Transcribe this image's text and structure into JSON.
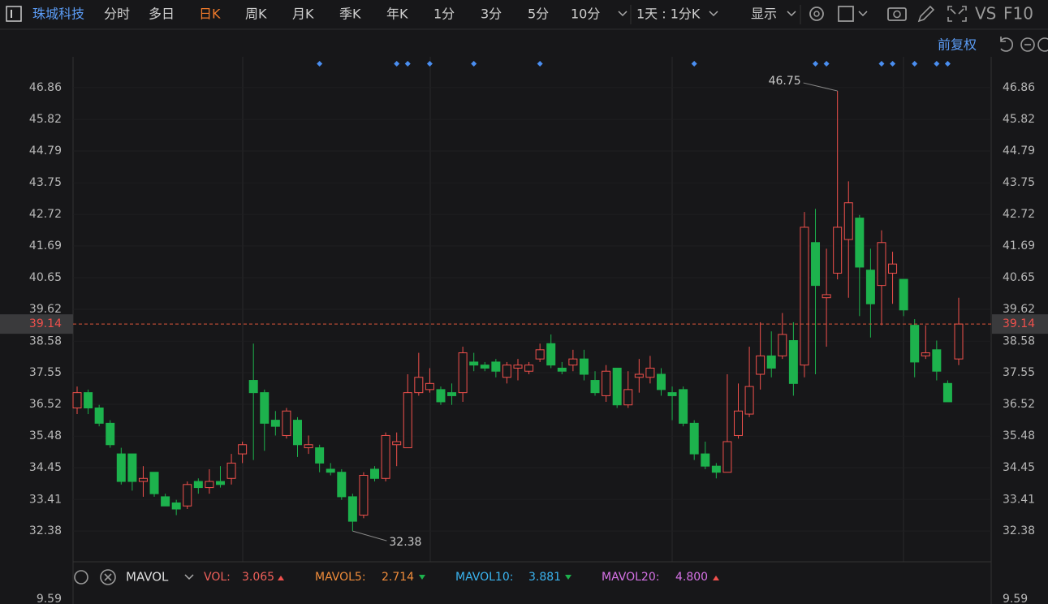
{
  "toolbar": {
    "stock_name": "珠城科技",
    "tabs": [
      "分时",
      "多日",
      "日K",
      "周K",
      "月K",
      "季K",
      "年K",
      "1分",
      "3分",
      "5分",
      "10分"
    ],
    "active_tab": "日K",
    "period_select": "1天 : 1分K",
    "display": "显示",
    "vs": "VS",
    "f10": "F10",
    "adjust": "前复权"
  },
  "chart_data": {
    "type": "candlestick",
    "up_color": "#f0504c",
    "down_color": "#1db24d",
    "open": [
      36.4,
      36.9,
      36.4,
      35.9,
      34.9,
      34.9,
      34.0,
      34.3,
      33.5,
      33.3,
      33.2,
      34.0,
      33.8,
      34.0,
      34.1,
      34.9,
      37.3,
      36.9,
      36.0,
      35.5,
      36.0,
      35.1,
      35.1,
      34.4,
      34.3,
      33.5,
      32.9,
      34.4,
      34.1,
      35.2,
      35.1,
      36.9,
      37.0,
      37.0,
      36.9,
      36.9,
      37.9,
      37.8,
      37.9,
      37.4,
      37.7,
      37.6,
      38.0,
      38.5,
      37.7,
      37.8,
      38.0,
      37.3,
      36.8,
      37.7,
      36.5,
      37.4,
      37.4,
      37.5,
      36.9,
      37.0,
      35.9,
      34.9,
      34.5,
      34.3,
      35.5,
      36.2,
      37.5,
      38.1,
      38.1,
      38.6,
      37.8,
      41.8,
      40.0,
      40.8,
      41.9,
      42.6,
      40.9,
      40.4,
      40.8,
      40.6,
      39.1,
      38.1,
      38.3,
      37.2,
      38.0
    ],
    "high": [
      37.1,
      37.0,
      36.5,
      36.0,
      35.1,
      34.9,
      34.5,
      34.3,
      33.6,
      33.4,
      34.0,
      34.1,
      34.4,
      34.5,
      34.9,
      35.3,
      38.5,
      37.0,
      36.3,
      36.4,
      36.1,
      35.5,
      35.2,
      34.6,
      34.4,
      33.6,
      34.3,
      34.5,
      35.6,
      35.6,
      37.5,
      38.2,
      37.7,
      37.1,
      37.2,
      38.4,
      38.2,
      37.9,
      38.0,
      37.9,
      38.0,
      37.9,
      38.5,
      38.8,
      37.9,
      38.3,
      38.3,
      37.6,
      37.8,
      37.7,
      37.6,
      38.0,
      38.1,
      37.7,
      37.1,
      37.1,
      36.0,
      35.3,
      34.6,
      37.5,
      37.2,
      38.4,
      39.2,
      38.9,
      39.5,
      39.2,
      42.8,
      42.9,
      41.6,
      46.75,
      43.8,
      42.7,
      41.6,
      42.2,
      41.5,
      40.6,
      39.3,
      39.1,
      38.6,
      37.3,
      40.0
    ],
    "low": [
      36.2,
      36.2,
      35.8,
      35.1,
      33.9,
      33.7,
      33.5,
      33.5,
      33.2,
      32.9,
      33.1,
      33.6,
      33.6,
      33.8,
      33.9,
      34.6,
      34.7,
      35.0,
      35.5,
      35.4,
      34.8,
      34.9,
      34.3,
      34.2,
      33.4,
      32.38,
      32.8,
      34.0,
      34.0,
      34.5,
      35.1,
      36.8,
      36.9,
      36.5,
      36.5,
      36.6,
      37.6,
      37.6,
      37.4,
      37.2,
      37.3,
      37.5,
      37.9,
      37.7,
      37.5,
      37.6,
      37.3,
      36.8,
      36.6,
      36.4,
      36.4,
      36.9,
      37.2,
      36.8,
      36.0,
      35.8,
      34.7,
      34.4,
      34.1,
      34.3,
      35.4,
      36.1,
      37.0,
      37.4,
      38.0,
      36.8,
      37.4,
      37.5,
      38.4,
      40.6,
      40.0,
      39.4,
      38.7,
      39.1,
      39.8,
      39.4,
      37.4,
      38.0,
      37.3,
      36.6,
      37.8
    ],
    "close": [
      36.9,
      36.4,
      35.9,
      35.2,
      34.0,
      34.0,
      34.1,
      33.6,
      33.2,
      33.1,
      33.9,
      33.8,
      34.0,
      33.9,
      34.6,
      35.2,
      36.9,
      35.9,
      35.8,
      36.3,
      35.2,
      35.2,
      34.6,
      34.3,
      33.5,
      32.7,
      34.2,
      34.1,
      35.5,
      35.3,
      36.9,
      37.4,
      37.2,
      36.6,
      36.8,
      38.2,
      37.8,
      37.7,
      37.6,
      37.8,
      37.8,
      37.8,
      38.3,
      37.8,
      37.6,
      38.0,
      37.5,
      36.9,
      37.6,
      36.5,
      37.0,
      37.5,
      37.7,
      37.0,
      36.8,
      35.9,
      34.9,
      34.5,
      34.3,
      35.3,
      36.3,
      37.1,
      38.1,
      37.7,
      38.8,
      37.2,
      42.3,
      40.4,
      40.1,
      42.3,
      43.1,
      41.0,
      39.8,
      41.8,
      41.1,
      39.6,
      37.9,
      38.2,
      37.6,
      36.6,
      39.14
    ],
    "ylim": [
      31.43,
      48.66
    ],
    "yticks": [
      32.38,
      33.41,
      34.45,
      35.48,
      36.52,
      37.55,
      38.58,
      39.62,
      40.65,
      41.69,
      42.72,
      43.75,
      44.79,
      45.82,
      46.86
    ],
    "current_price": 39.14,
    "current_price_color": "#e0563b"
  },
  "indicator_bar": {
    "name": "MAVOL",
    "vol_label": "VOL:",
    "vol_value": "3.065",
    "ma5_label": "MAVOL5:",
    "ma5_value": "2.714",
    "ma10_label": "MAVOL10:",
    "ma10_value": "3.881",
    "ma20_label": "MAVOL20:",
    "ma20_value": "4.800",
    "volume_top_tick": "9.59"
  }
}
